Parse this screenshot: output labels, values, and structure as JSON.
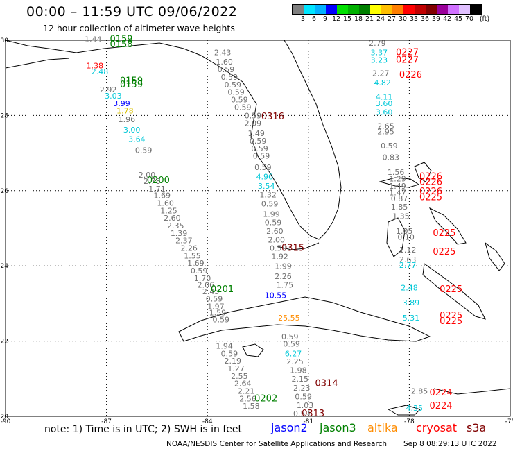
{
  "header": {
    "title": "00:00 – 11:59 UTC 09/06/2022",
    "subtitle": "12 hour collection of altimeter wave heights"
  },
  "legend": {
    "unit": "(ft)",
    "steps": [
      {
        "label": "3",
        "color": "#7f7f7f"
      },
      {
        "label": "6",
        "color": "#00e5ff"
      },
      {
        "label": "9",
        "color": "#00b0ff"
      },
      {
        "label": "12",
        "color": "#0000ff"
      },
      {
        "label": "15",
        "color": "#00e000"
      },
      {
        "label": "18",
        "color": "#00b000"
      },
      {
        "label": "21",
        "color": "#008000"
      },
      {
        "label": "24",
        "color": "#ffff00"
      },
      {
        "label": "27",
        "color": "#ffbf00"
      },
      {
        "label": "30",
        "color": "#ff7f00"
      },
      {
        "label": "33",
        "color": "#ff0000"
      },
      {
        "label": "36",
        "color": "#c00000"
      },
      {
        "label": "39",
        "color": "#800000"
      },
      {
        "label": "42",
        "color": "#9a009a"
      },
      {
        "label": "45",
        "color": "#d070ff"
      },
      {
        "label": "70",
        "color": "#e0c0ff"
      },
      {
        "label": "",
        "color": "#000000"
      }
    ]
  },
  "axes": {
    "lon_labels": [
      "-90",
      "-87",
      "-84",
      "-81",
      "-78",
      "-75"
    ],
    "lat_labels": [
      "30",
      "28",
      "26",
      "24",
      "22",
      "20"
    ]
  },
  "footer": {
    "note": "note: 1) Time is in UTC; 2) SWH is in feet",
    "satellites": [
      {
        "name": "jason2",
        "color": "#0000ff"
      },
      {
        "name": "jason3",
        "color": "#008000"
      },
      {
        "name": "altika",
        "color": "#ff8c00"
      },
      {
        "name": "cryosat",
        "color": "#ff0000"
      },
      {
        "name": "s3a",
        "color": "#800000"
      }
    ],
    "credit": "NOAA/NESDIS Center for Satellite Applications and Research",
    "generated": "Sep  8 08:29:13 UTC 2022"
  },
  "colors": {
    "gray": "#6f6f6f",
    "cyan": "#00c8d8",
    "yellow": "#d8c000",
    "green": "#008000",
    "blue": "#0000ff",
    "orange": "#ff8c00",
    "red": "#ff0000",
    "maroon": "#800000"
  },
  "track_times": [
    {
      "text": "0159",
      "lon": -86.9,
      "lat": 29.95,
      "color": "green"
    },
    {
      "text": "0158",
      "lon": -86.9,
      "lat": 29.82,
      "color": "green"
    },
    {
      "text": "0159",
      "lon": -86.6,
      "lat": 28.85,
      "color": "green"
    },
    {
      "text": "0159",
      "lon": -86.6,
      "lat": 28.75,
      "color": "green"
    },
    {
      "text": "0200",
      "lon": -85.8,
      "lat": 26.2,
      "color": "green"
    },
    {
      "text": "0201",
      "lon": -83.9,
      "lat": 23.3,
      "color": "green"
    },
    {
      "text": "0202",
      "lon": -82.6,
      "lat": 20.4,
      "color": "green"
    },
    {
      "text": "0316",
      "lon": -82.4,
      "lat": 27.9,
      "color": "maroon"
    },
    {
      "text": "0315",
      "lon": -81.8,
      "lat": 24.4,
      "color": "maroon"
    },
    {
      "text": "0314",
      "lon": -80.8,
      "lat": 20.8,
      "color": "maroon"
    },
    {
      "text": "0313",
      "lon": -81.2,
      "lat": 20.0,
      "color": "maroon"
    },
    {
      "text": "0227",
      "lon": -78.4,
      "lat": 29.6,
      "color": "red"
    },
    {
      "text": "0227",
      "lon": -78.4,
      "lat": 29.4,
      "color": "red"
    },
    {
      "text": "0226",
      "lon": -78.3,
      "lat": 29.0,
      "color": "red"
    },
    {
      "text": "0226",
      "lon": -77.7,
      "lat": 26.3,
      "color": "red"
    },
    {
      "text": "0226",
      "lon": -77.7,
      "lat": 26.15,
      "color": "red"
    },
    {
      "text": "0226",
      "lon": -77.7,
      "lat": 25.9,
      "color": "red"
    },
    {
      "text": "0225",
      "lon": -77.7,
      "lat": 25.75,
      "color": "red"
    },
    {
      "text": "0225",
      "lon": -77.3,
      "lat": 24.8,
      "color": "red"
    },
    {
      "text": "0225",
      "lon": -77.3,
      "lat": 24.3,
      "color": "red"
    },
    {
      "text": "0225",
      "lon": -77.1,
      "lat": 23.3,
      "color": "red"
    },
    {
      "text": "0225",
      "lon": -77.1,
      "lat": 22.6,
      "color": "red"
    },
    {
      "text": "0225",
      "lon": -77.1,
      "lat": 22.45,
      "color": "red"
    },
    {
      "text": "0224",
      "lon": -77.4,
      "lat": 20.55,
      "color": "red"
    },
    {
      "text": "0224",
      "lon": -77.4,
      "lat": 20.2,
      "color": "red"
    }
  ],
  "wave_heights": [
    {
      "text": "1.44",
      "lon": -87.65,
      "lat": 29.95,
      "color": "gray"
    },
    {
      "text": "1.38",
      "lon": -87.6,
      "lat": 29.25,
      "color": "red"
    },
    {
      "text": "2.48",
      "lon": -87.45,
      "lat": 29.1,
      "color": "cyan"
    },
    {
      "text": "2.92",
      "lon": -87.2,
      "lat": 28.62,
      "color": "gray"
    },
    {
      "text": "3.03",
      "lon": -87.05,
      "lat": 28.45,
      "color": "cyan"
    },
    {
      "text": "3.99",
      "lon": -86.8,
      "lat": 28.25,
      "color": "blue"
    },
    {
      "text": "1.78",
      "lon": -86.7,
      "lat": 28.05,
      "color": "yellow"
    },
    {
      "text": "1.96",
      "lon": -86.65,
      "lat": 27.82,
      "color": "gray"
    },
    {
      "text": "3.00",
      "lon": -86.5,
      "lat": 27.55,
      "color": "cyan"
    },
    {
      "text": "3.64",
      "lon": -86.35,
      "lat": 27.3,
      "color": "cyan"
    },
    {
      "text": "0.59",
      "lon": -86.15,
      "lat": 27.0,
      "color": "gray"
    },
    {
      "text": "2.00",
      "lon": -86.05,
      "lat": 26.35,
      "color": "gray"
    },
    {
      "text": "2.78",
      "lon": -85.9,
      "lat": 26.18,
      "color": "gray"
    },
    {
      "text": "1.71",
      "lon": -85.75,
      "lat": 25.98,
      "color": "gray"
    },
    {
      "text": "1.69",
      "lon": -85.6,
      "lat": 25.8,
      "color": "gray"
    },
    {
      "text": "1.60",
      "lon": -85.5,
      "lat": 25.6,
      "color": "gray"
    },
    {
      "text": "1.25",
      "lon": -85.4,
      "lat": 25.4,
      "color": "gray"
    },
    {
      "text": "2.60",
      "lon": -85.3,
      "lat": 25.2,
      "color": "gray"
    },
    {
      "text": "2.35",
      "lon": -85.2,
      "lat": 25.0,
      "color": "gray"
    },
    {
      "text": "1.39",
      "lon": -85.1,
      "lat": 24.8,
      "color": "gray"
    },
    {
      "text": "2.37",
      "lon": -84.95,
      "lat": 24.6,
      "color": "gray"
    },
    {
      "text": "2.26",
      "lon": -84.8,
      "lat": 24.4,
      "color": "gray"
    },
    {
      "text": "1.55",
      "lon": -84.7,
      "lat": 24.2,
      "color": "gray"
    },
    {
      "text": "1.69",
      "lon": -84.6,
      "lat": 24.0,
      "color": "gray"
    },
    {
      "text": "0.59",
      "lon": -84.5,
      "lat": 23.8,
      "color": "gray"
    },
    {
      "text": "1.70",
      "lon": -84.4,
      "lat": 23.6,
      "color": "gray"
    },
    {
      "text": "2.06",
      "lon": -84.3,
      "lat": 23.42,
      "color": "gray"
    },
    {
      "text": "2.45",
      "lon": -84.15,
      "lat": 23.25,
      "color": "gray"
    },
    {
      "text": "0.59",
      "lon": -84.05,
      "lat": 23.05,
      "color": "gray"
    },
    {
      "text": "1.97",
      "lon": -84.0,
      "lat": 22.85,
      "color": "gray"
    },
    {
      "text": "1.59",
      "lon": -83.95,
      "lat": 22.68,
      "color": "gray"
    },
    {
      "text": "0.59",
      "lon": -83.85,
      "lat": 22.5,
      "color": "gray"
    },
    {
      "text": "1.94",
      "lon": -83.75,
      "lat": 21.8,
      "color": "gray"
    },
    {
      "text": "0.59",
      "lon": -83.6,
      "lat": 21.6,
      "color": "gray"
    },
    {
      "text": "2.19",
      "lon": -83.5,
      "lat": 21.4,
      "color": "gray"
    },
    {
      "text": "1.27",
      "lon": -83.4,
      "lat": 21.2,
      "color": "gray"
    },
    {
      "text": "2.55",
      "lon": -83.3,
      "lat": 21.0,
      "color": "gray"
    },
    {
      "text": "2.64",
      "lon": -83.2,
      "lat": 20.8,
      "color": "gray"
    },
    {
      "text": "2.21",
      "lon": -83.1,
      "lat": 20.6,
      "color": "gray"
    },
    {
      "text": "2.56",
      "lon": -83.05,
      "lat": 20.4,
      "color": "gray"
    },
    {
      "text": "1.58",
      "lon": -82.95,
      "lat": 20.2,
      "color": "gray"
    },
    {
      "text": "2.43",
      "lon": -83.8,
      "lat": 29.6,
      "color": "gray"
    },
    {
      "text": "1.60",
      "lon": -83.75,
      "lat": 29.35,
      "color": "gray"
    },
    {
      "text": "0.59",
      "lon": -83.7,
      "lat": 29.15,
      "color": "gray"
    },
    {
      "text": "0.59",
      "lon": -83.6,
      "lat": 28.95,
      "color": "gray"
    },
    {
      "text": "0.59",
      "lon": -83.5,
      "lat": 28.75,
      "color": "gray"
    },
    {
      "text": "0.59",
      "lon": -83.4,
      "lat": 28.55,
      "color": "gray"
    },
    {
      "text": "0.59",
      "lon": -83.3,
      "lat": 28.35,
      "color": "gray"
    },
    {
      "text": "0.59",
      "lon": -83.2,
      "lat": 28.15,
      "color": "gray"
    },
    {
      "text": "0.59",
      "lon": -82.9,
      "lat": 27.92,
      "color": "gray"
    },
    {
      "text": "2.09",
      "lon": -82.9,
      "lat": 27.72,
      "color": "gray"
    },
    {
      "text": "1.49",
      "lon": -82.8,
      "lat": 27.45,
      "color": "gray"
    },
    {
      "text": "0.59",
      "lon": -82.75,
      "lat": 27.25,
      "color": "gray"
    },
    {
      "text": "0.59",
      "lon": -82.7,
      "lat": 27.05,
      "color": "gray"
    },
    {
      "text": "0.59",
      "lon": -82.65,
      "lat": 26.85,
      "color": "gray"
    },
    {
      "text": "0.59",
      "lon": -82.6,
      "lat": 26.55,
      "color": "gray"
    },
    {
      "text": "4.96",
      "lon": -82.55,
      "lat": 26.3,
      "color": "cyan"
    },
    {
      "text": "3.54",
      "lon": -82.5,
      "lat": 26.05,
      "color": "cyan"
    },
    {
      "text": "1.32",
      "lon": -82.45,
      "lat": 25.82,
      "color": "gray"
    },
    {
      "text": "0.59",
      "lon": -82.4,
      "lat": 25.58,
      "color": "gray"
    },
    {
      "text": "1.99",
      "lon": -82.35,
      "lat": 25.3,
      "color": "gray"
    },
    {
      "text": "0.59",
      "lon": -82.3,
      "lat": 25.08,
      "color": "gray"
    },
    {
      "text": "2.60",
      "lon": -82.25,
      "lat": 24.85,
      "color": "gray"
    },
    {
      "text": "2.00",
      "lon": -82.2,
      "lat": 24.62,
      "color": "gray"
    },
    {
      "text": "0.59",
      "lon": -82.15,
      "lat": 24.4,
      "color": "gray"
    },
    {
      "text": "1.92",
      "lon": -82.1,
      "lat": 24.18,
      "color": "gray"
    },
    {
      "text": "1.99",
      "lon": -82.0,
      "lat": 23.92,
      "color": "gray"
    },
    {
      "text": "2.26",
      "lon": -82.0,
      "lat": 23.65,
      "color": "gray"
    },
    {
      "text": "1.75",
      "lon": -81.95,
      "lat": 23.42,
      "color": "gray"
    },
    {
      "text": "10.55",
      "lon": -82.3,
      "lat": 23.15,
      "color": "blue"
    },
    {
      "text": "25.55",
      "lon": -81.9,
      "lat": 22.55,
      "color": "orange"
    },
    {
      "text": "0.59",
      "lon": -81.8,
      "lat": 22.05,
      "color": "gray"
    },
    {
      "text": "0.59",
      "lon": -81.75,
      "lat": 21.85,
      "color": "gray"
    },
    {
      "text": "6.27",
      "lon": -81.7,
      "lat": 21.6,
      "color": "cyan"
    },
    {
      "text": "2.25",
      "lon": -81.65,
      "lat": 21.38,
      "color": "gray"
    },
    {
      "text": "1.98",
      "lon": -81.55,
      "lat": 21.15,
      "color": "gray"
    },
    {
      "text": "2.15",
      "lon": -81.5,
      "lat": 20.92,
      "color": "gray"
    },
    {
      "text": "2.23",
      "lon": -81.45,
      "lat": 20.68,
      "color": "gray"
    },
    {
      "text": "0.59",
      "lon": -81.4,
      "lat": 20.45,
      "color": "gray"
    },
    {
      "text": "1.03",
      "lon": -81.35,
      "lat": 20.22,
      "color": "gray"
    },
    {
      "text": "0.59",
      "lon": -81.45,
      "lat": 20.0,
      "color": "gray"
    },
    {
      "text": "2.79",
      "lon": -79.2,
      "lat": 29.85,
      "color": "gray"
    },
    {
      "text": "3.37",
      "lon": -79.15,
      "lat": 29.6,
      "color": "cyan"
    },
    {
      "text": "3.23",
      "lon": -79.15,
      "lat": 29.4,
      "color": "cyan"
    },
    {
      "text": "2.27",
      "lon": -79.1,
      "lat": 29.05,
      "color": "gray"
    },
    {
      "text": "4.82",
      "lon": -79.05,
      "lat": 28.8,
      "color": "cyan"
    },
    {
      "text": "4.11",
      "lon": -79.0,
      "lat": 28.42,
      "color": "cyan"
    },
    {
      "text": "3.60",
      "lon": -79.0,
      "lat": 28.25,
      "color": "cyan"
    },
    {
      "text": "3.60",
      "lon": -79.0,
      "lat": 28.02,
      "color": "cyan"
    },
    {
      "text": "2.65",
      "lon": -78.95,
      "lat": 27.65,
      "color": "gray"
    },
    {
      "text": "2.95",
      "lon": -78.95,
      "lat": 27.5,
      "color": "gray"
    },
    {
      "text": "0.59",
      "lon": -78.85,
      "lat": 27.12,
      "color": "gray"
    },
    {
      "text": "0.83",
      "lon": -78.8,
      "lat": 26.82,
      "color": "gray"
    },
    {
      "text": "1.56",
      "lon": -78.65,
      "lat": 26.42,
      "color": "gray"
    },
    {
      "text": "1.29",
      "lon": -78.6,
      "lat": 26.25,
      "color": "gray"
    },
    {
      "text": "1.49",
      "lon": -78.6,
      "lat": 26.05,
      "color": "gray"
    },
    {
      "text": "1.47",
      "lon": -78.6,
      "lat": 25.88,
      "color": "gray"
    },
    {
      "text": "0.87",
      "lon": -78.55,
      "lat": 25.72,
      "color": "gray"
    },
    {
      "text": "1.85",
      "lon": -78.55,
      "lat": 25.5,
      "color": "gray"
    },
    {
      "text": "1.35",
      "lon": -78.5,
      "lat": 25.25,
      "color": "gray"
    },
    {
      "text": "1.05",
      "lon": -78.4,
      "lat": 24.85,
      "color": "gray"
    },
    {
      "text": "0.10",
      "lon": -78.35,
      "lat": 24.7,
      "color": "gray"
    },
    {
      "text": "1.12",
      "lon": -78.3,
      "lat": 24.35,
      "color": "gray"
    },
    {
      "text": "2.63",
      "lon": -78.3,
      "lat": 24.1,
      "color": "gray"
    },
    {
      "text": "2.77",
      "lon": -78.3,
      "lat": 23.95,
      "color": "cyan"
    },
    {
      "text": "2.48",
      "lon": -78.25,
      "lat": 23.35,
      "color": "cyan"
    },
    {
      "text": "3.89",
      "lon": -78.2,
      "lat": 22.95,
      "color": "cyan"
    },
    {
      "text": "5.31",
      "lon": -78.2,
      "lat": 22.55,
      "color": "cyan"
    },
    {
      "text": "2.85",
      "lon": -77.95,
      "lat": 20.6,
      "color": "gray"
    },
    {
      "text": "4.35",
      "lon": -78.1,
      "lat": 20.15,
      "color": "cyan"
    }
  ]
}
